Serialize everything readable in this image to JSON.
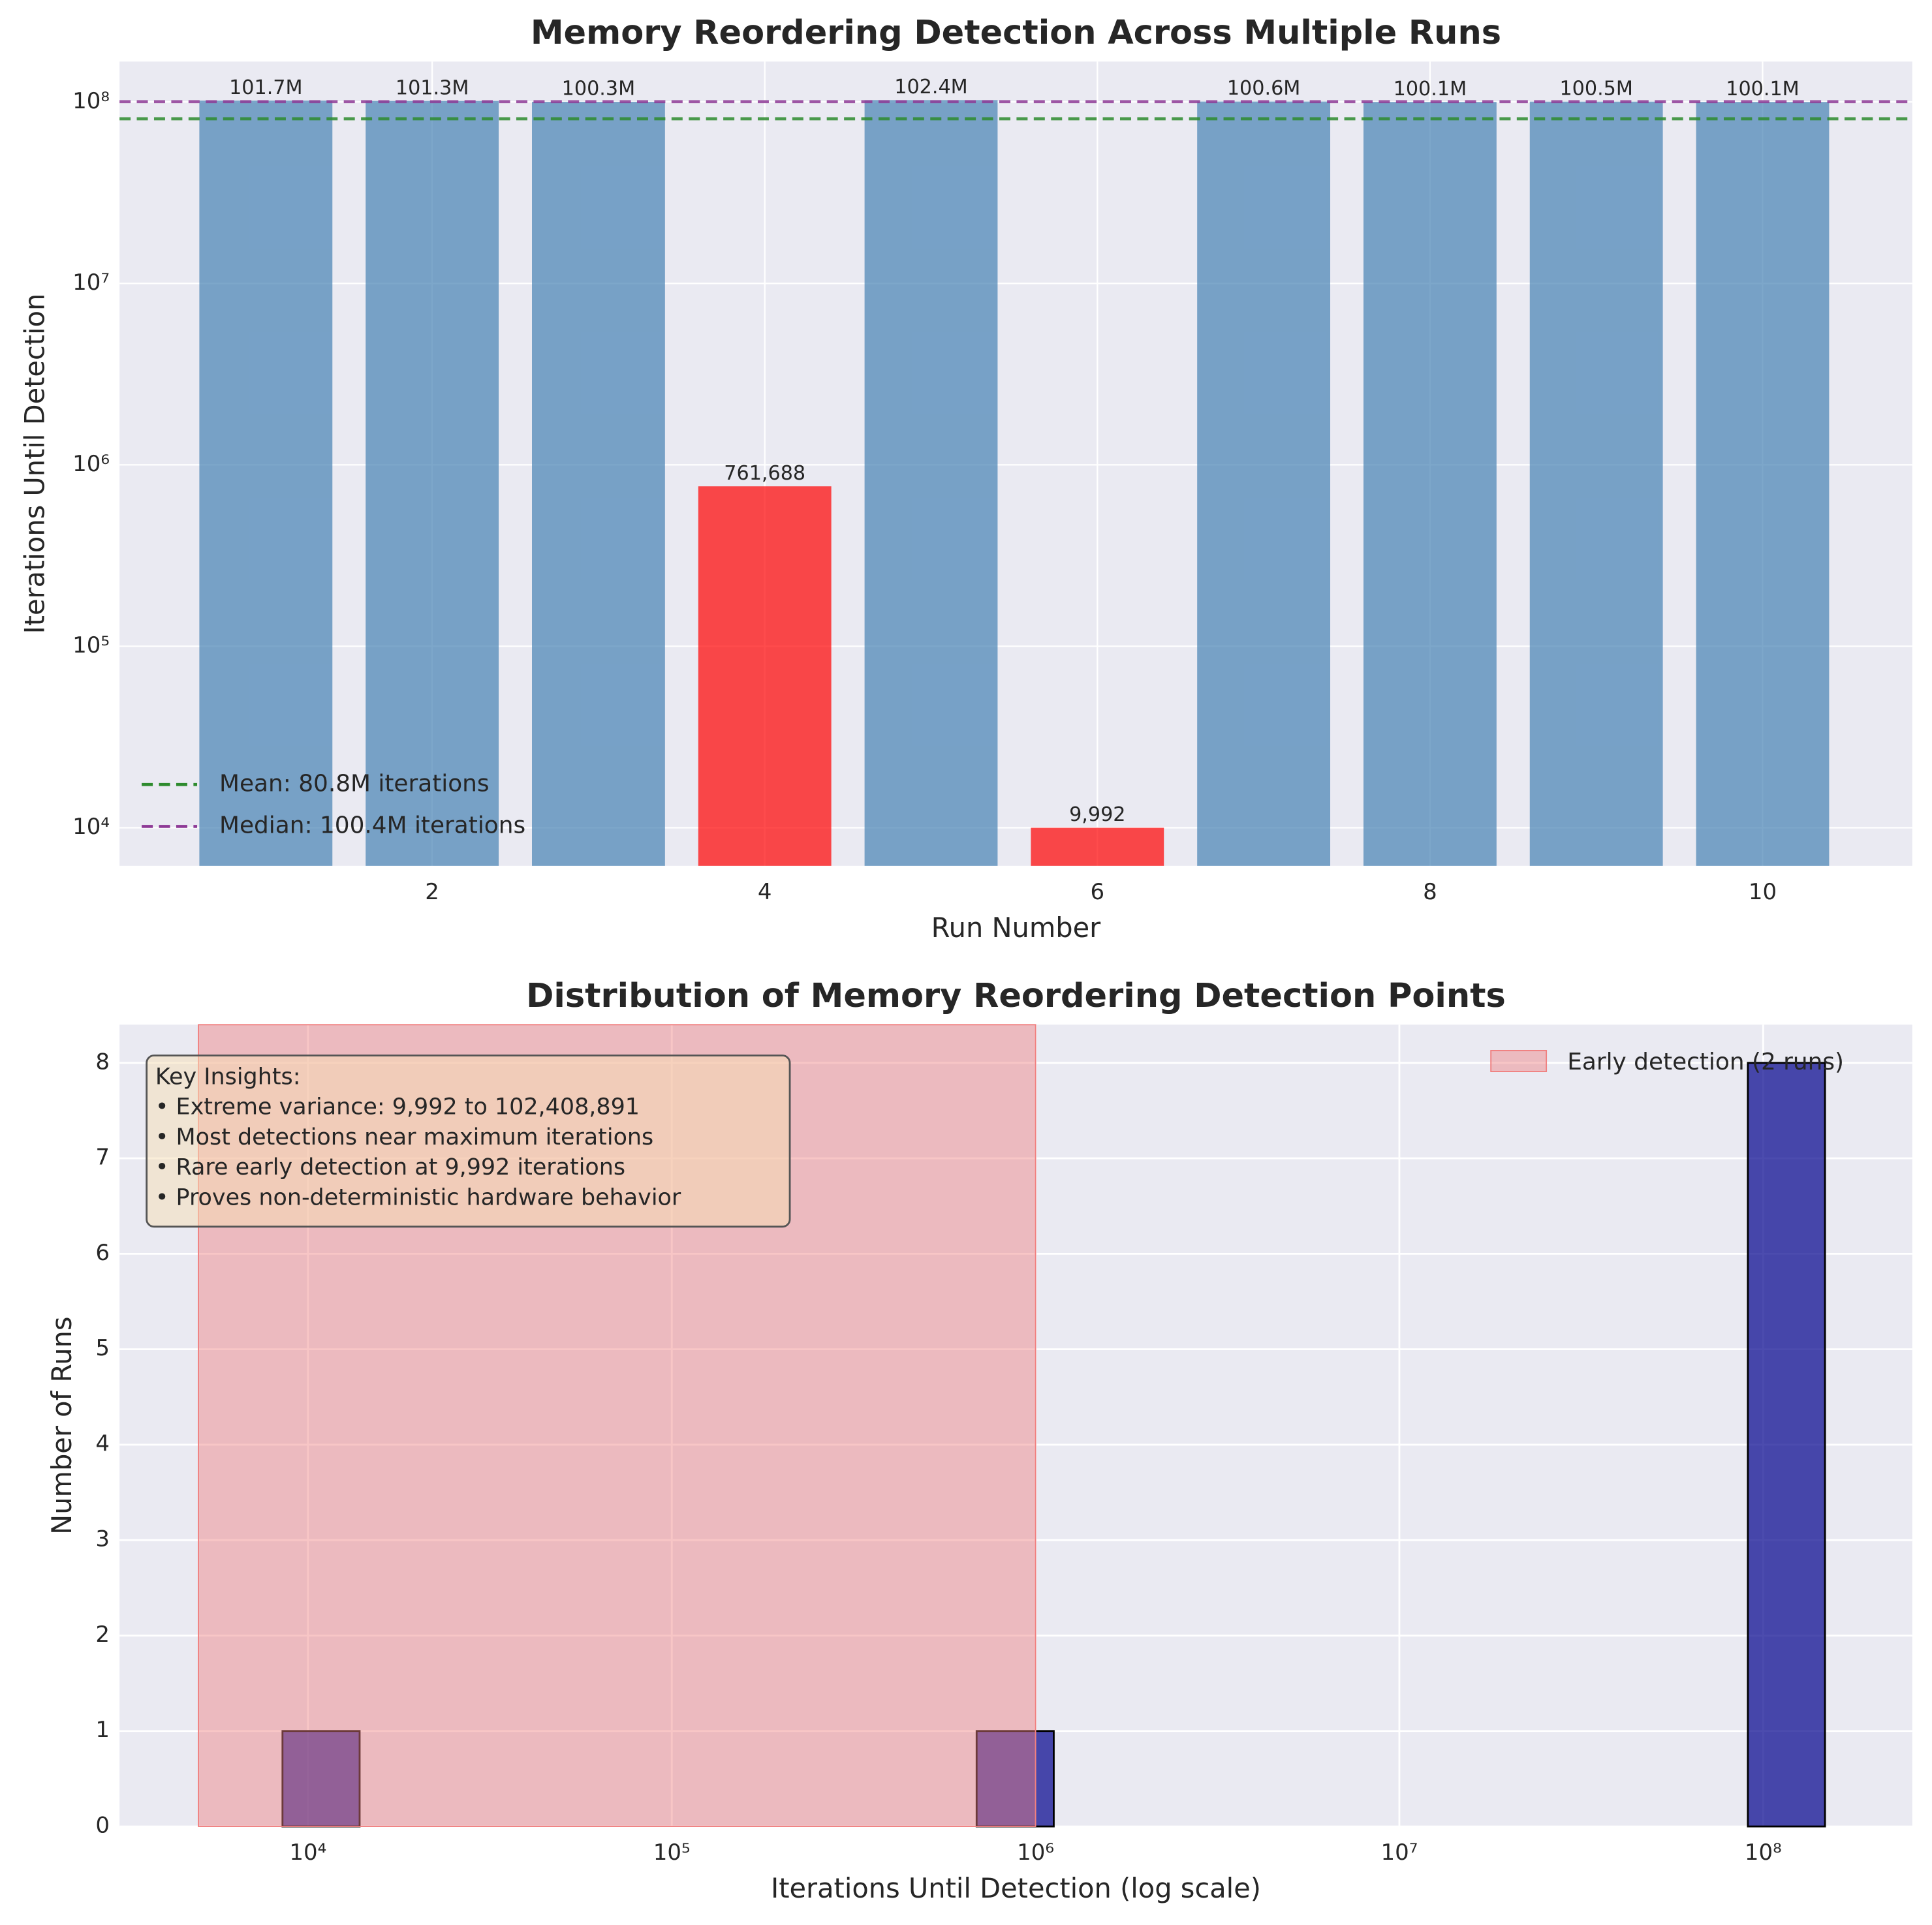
{
  "chart_data": [
    {
      "type": "bar",
      "title": "Memory Reordering Detection Across Multiple Runs",
      "xlabel": "Run Number",
      "ylabel": "Iterations Until Detection",
      "x": [
        1,
        2,
        3,
        4,
        5,
        6,
        7,
        8,
        9,
        10
      ],
      "values": [
        101700000,
        101300000,
        100300000,
        761688,
        102408891,
        9992,
        100600000,
        100100000,
        100500000,
        100100000
      ],
      "value_labels": [
        "101.7M",
        "101.3M",
        "100.3M",
        "761,688",
        "102.4M",
        "9,992",
        "100.6M",
        "100.1M",
        "100.5M",
        "100.1M"
      ],
      "colors": [
        "#4682b4",
        "#4682b4",
        "#4682b4",
        "#ff0000",
        "#4682b4",
        "#ff0000",
        "#4682b4",
        "#4682b4",
        "#4682b4",
        "#4682b4"
      ],
      "xlim": [
        0.12,
        10.9
      ],
      "xticks": [
        2,
        4,
        6,
        8,
        10
      ],
      "yscale": "log",
      "ylim": [
        6166,
        167000000
      ],
      "yticks": [
        {
          "value": 10000,
          "label": "10⁴"
        },
        {
          "value": 100000,
          "label": "10⁵"
        },
        {
          "value": 1000000,
          "label": "10⁶"
        },
        {
          "value": 10000000,
          "label": "10⁷"
        },
        {
          "value": 100000000,
          "label": "10⁸"
        }
      ],
      "grid": true,
      "reference_lines": [
        {
          "name": "Mean: 80.8M iterations",
          "value": 80800000,
          "color": "#2e8b2e"
        },
        {
          "name": "Median: 100.4M iterations",
          "value": 100400000,
          "color": "#8e3a96"
        }
      ],
      "legend": "lower left"
    },
    {
      "type": "histogram",
      "title": "Distribution of Memory Reordering Detection Points",
      "xlabel": "Iterations Until Detection (log scale)",
      "ylabel": "Number of Runs",
      "bins": [
        8511,
        13868,
        22594,
        36813,
        59979,
        97724,
        159221,
        259418,
        422669,
        688652,
        1122018,
        1828100,
        2978516,
        4852885,
        7906786,
        12882496,
        20989398,
        34197944,
        55718574,
        90782053,
        147910839
      ],
      "counts": [
        1,
        0,
        0,
        0,
        0,
        0,
        0,
        0,
        0,
        1,
        0,
        0,
        0,
        0,
        0,
        0,
        0,
        0,
        0,
        8
      ],
      "color": "#00008b",
      "edgecolor": "#000000",
      "xscale": "log",
      "xlim": [
        3034,
        257000000
      ],
      "xticks": [
        {
          "value": 10000,
          "label": "10⁴"
        },
        {
          "value": 100000,
          "label": "10⁵"
        },
        {
          "value": 1000000,
          "label": "10⁶"
        },
        {
          "value": 10000000,
          "label": "10⁷"
        },
        {
          "value": 100000000,
          "label": "10⁸"
        }
      ],
      "ylim": [
        0,
        8.4
      ],
      "yticks": [
        0,
        1,
        2,
        3,
        4,
        5,
        6,
        7,
        8
      ],
      "grid": true,
      "span": {
        "name": "Early detection (2 runs)",
        "range": [
          5000,
          1000000
        ],
        "color": "#f08080"
      },
      "annotation": [
        "Key Insights:",
        "• Extreme variance: 9,992 to 102,408,891",
        "• Most detections near maximum iterations",
        "• Rare early detection at 9,992 iterations",
        "• Proves non-deterministic hardware behavior"
      ],
      "legend": "upper right"
    }
  ]
}
